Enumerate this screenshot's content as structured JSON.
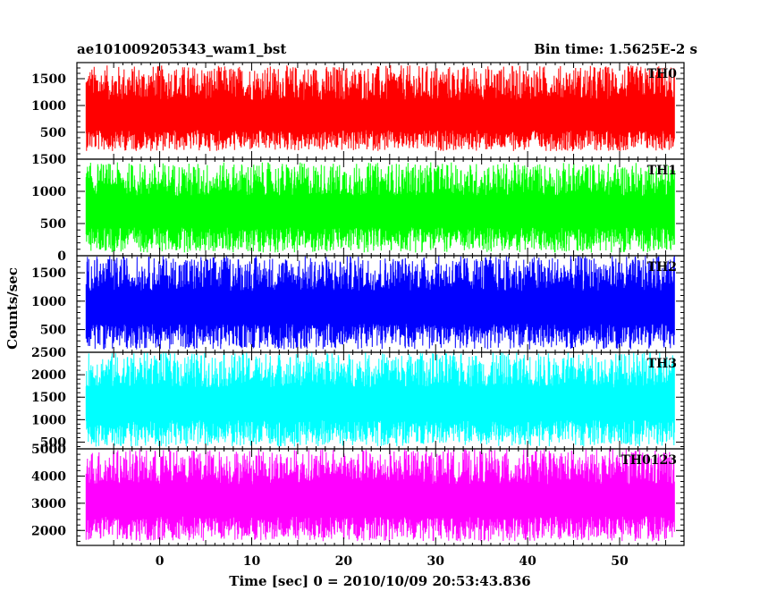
{
  "header": {
    "left_title": "ae101009205343_wam1_bst",
    "right_title": "Bin time: 1.5625E-2 s"
  },
  "chart_data": {
    "type": "line",
    "title": "ae101009205343_wam1_bst",
    "subtitle": "Bin time: 1.5625E-2 s",
    "xlabel": "Time [sec] 0 = 2010/10/09 20:53:43.836",
    "ylabel": "Counts/sec",
    "xlim": [
      -9,
      57
    ],
    "x_ticks": [
      0,
      10,
      20,
      30,
      40,
      50
    ],
    "data_x_range": [
      -8,
      56
    ],
    "bin_time_s": 0.015625,
    "grid": false,
    "panels": [
      {
        "name": "TH0",
        "color": "#ff0000",
        "ylim": [
          0,
          1800
        ],
        "y_ticks": [
          500,
          1000,
          1500
        ],
        "y_tick_labels": [
          "500",
          "1000",
          "1500"
        ],
        "mean": 750,
        "min_typical": 150,
        "max_typical": 1750
      },
      {
        "name": "TH1",
        "color": "#00ff00",
        "ylim": [
          0,
          1500
        ],
        "y_ticks": [
          0,
          500,
          1000,
          1500
        ],
        "y_tick_labels": [
          "0",
          "500",
          "1000",
          "1500"
        ],
        "mean": 650,
        "min_typical": 50,
        "max_typical": 1450
      },
      {
        "name": "TH2",
        "color": "#0000ff",
        "ylim": [
          100,
          1800
        ],
        "y_ticks": [
          500,
          1000,
          1500
        ],
        "y_tick_labels": [
          "500",
          "1000",
          "1500"
        ],
        "mean": 850,
        "min_typical": 150,
        "max_typical": 1800
      },
      {
        "name": "TH3",
        "color": "#00ffff",
        "ylim": [
          350,
          2500
        ],
        "y_ticks": [
          500,
          1000,
          1500,
          2000,
          2500
        ],
        "y_tick_labels": [
          "500",
          "1000",
          "1500",
          "2000",
          "2500"
        ],
        "mean": 1300,
        "min_typical": 400,
        "max_typical": 2500
      },
      {
        "name": "TH0123",
        "color": "#ff00ff",
        "ylim": [
          1450,
          5000
        ],
        "y_ticks": [
          2000,
          3000,
          4000,
          5000
        ],
        "y_tick_labels": [
          "2000",
          "3000",
          "4000",
          "5000"
        ],
        "mean": 3000,
        "min_typical": 1600,
        "max_typical": 5000
      }
    ]
  }
}
